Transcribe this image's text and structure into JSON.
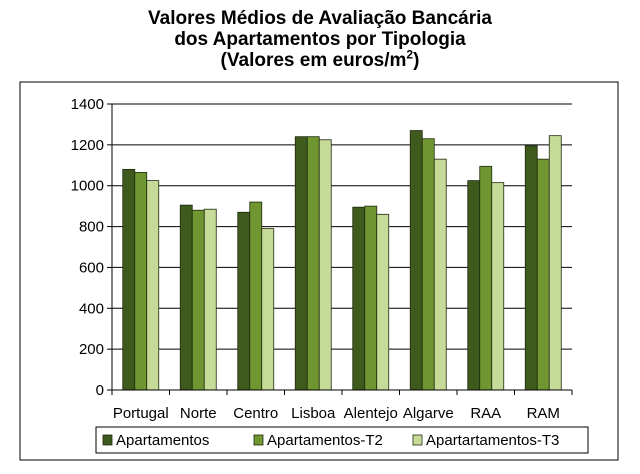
{
  "chart_data": {
    "type": "bar",
    "title_lines": [
      "Valores Médios de Avaliação Bancária",
      "dos Apartamentos por Tipologia"
    ],
    "title_unit_prefix": "(Valores em euros/m",
    "title_unit_sup": "2",
    "title_unit_suffix": ")",
    "categories": [
      "Portugal",
      "Norte",
      "Centro",
      "Lisboa",
      "Alentejo",
      "Algarve",
      "RAA",
      "RAM"
    ],
    "series": [
      {
        "name": "Apartamentos",
        "color": "#3f5a1d",
        "values": [
          1080,
          905,
          870,
          1240,
          895,
          1270,
          1025,
          1195
        ]
      },
      {
        "name": "Apartamentos-T2",
        "color": "#6f9631",
        "values": [
          1065,
          880,
          920,
          1240,
          900,
          1230,
          1095,
          1130
        ]
      },
      {
        "name": "Apartartamentos-T3",
        "color": "#c6db97",
        "values": [
          1025,
          885,
          790,
          1225,
          860,
          1130,
          1015,
          1245
        ]
      }
    ],
    "ylim": [
      0,
      1400
    ],
    "yticks": [
      0,
      200,
      400,
      600,
      800,
      1000,
      1200,
      1400
    ],
    "gridlines": true,
    "legend_position": "bottom"
  }
}
